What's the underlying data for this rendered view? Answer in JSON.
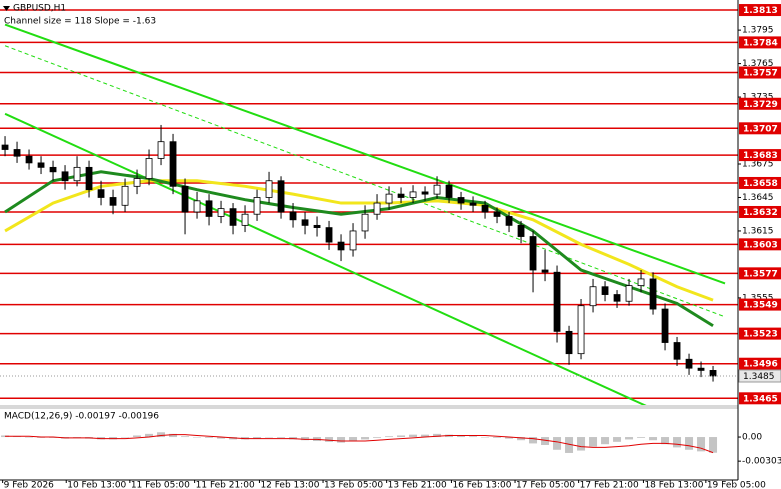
{
  "chart_data": [
    {
      "type": "candlestick",
      "title": "GBPUSD,H1",
      "subtitle": "Channel size = 118 Slope = -1.63",
      "up_color": "#ffffff",
      "down_color": "#000000",
      "open": [
        1.3692,
        1.3688,
        1.3682,
        1.3676,
        1.3672,
        1.3668,
        1.366,
        1.3672,
        1.3652,
        1.3645,
        1.3638,
        1.3655,
        1.3662,
        1.368,
        1.3695,
        1.3655,
        1.3632,
        1.3642,
        1.3628,
        1.3635,
        1.362,
        1.363,
        1.3645,
        1.366,
        1.3632,
        1.3625,
        1.362,
        1.3618,
        1.3605,
        1.3598,
        1.3615,
        1.363,
        1.364,
        1.3648,
        1.3645,
        1.365,
        1.3648,
        1.3656,
        1.3645,
        1.364,
        1.3638,
        1.3632,
        1.3628,
        1.362,
        1.361,
        1.358,
        1.3578,
        1.3525,
        1.3505,
        1.3548,
        1.3565,
        1.3558,
        1.3552,
        1.3566,
        1.3572,
        1.3545,
        1.3515,
        1.35,
        1.3492,
        1.349
      ],
      "high": [
        1.37,
        1.3695,
        1.3688,
        1.3682,
        1.3678,
        1.3674,
        1.3682,
        1.3678,
        1.366,
        1.3652,
        1.3662,
        1.367,
        1.3688,
        1.371,
        1.3702,
        1.3662,
        1.365,
        1.3648,
        1.3642,
        1.364,
        1.3638,
        1.3652,
        1.3668,
        1.3664,
        1.364,
        1.3632,
        1.3628,
        1.3624,
        1.3612,
        1.3622,
        1.3638,
        1.3648,
        1.3655,
        1.3654,
        1.3656,
        1.3655,
        1.3664,
        1.366,
        1.365,
        1.3646,
        1.3642,
        1.3636,
        1.3632,
        1.3624,
        1.3615,
        1.3598,
        1.3584,
        1.353,
        1.3554,
        1.3572,
        1.357,
        1.3562,
        1.3572,
        1.358,
        1.3578,
        1.355,
        1.352,
        1.3505,
        1.3498,
        1.3494
      ],
      "low": [
        1.3682,
        1.3676,
        1.367,
        1.3666,
        1.366,
        1.3652,
        1.3655,
        1.3645,
        1.3638,
        1.363,
        1.3632,
        1.3648,
        1.3656,
        1.3674,
        1.3648,
        1.3612,
        1.3626,
        1.362,
        1.3622,
        1.3612,
        1.3614,
        1.3624,
        1.364,
        1.3626,
        1.3618,
        1.3612,
        1.361,
        1.3598,
        1.3588,
        1.3592,
        1.3608,
        1.3625,
        1.3634,
        1.364,
        1.364,
        1.3642,
        1.3644,
        1.364,
        1.3634,
        1.3632,
        1.3626,
        1.3622,
        1.3614,
        1.3604,
        1.356,
        1.357,
        1.3515,
        1.3495,
        1.35,
        1.3542,
        1.3552,
        1.3546,
        1.3548,
        1.356,
        1.354,
        1.3508,
        1.3494,
        1.3486,
        1.3484,
        1.348
      ],
      "close": [
        1.3688,
        1.3682,
        1.3676,
        1.3672,
        1.3668,
        1.366,
        1.3672,
        1.3652,
        1.3645,
        1.3638,
        1.3655,
        1.3662,
        1.368,
        1.3695,
        1.3655,
        1.3632,
        1.3642,
        1.3628,
        1.3635,
        1.362,
        1.363,
        1.3645,
        1.366,
        1.3632,
        1.3625,
        1.362,
        1.3618,
        1.3605,
        1.3598,
        1.3615,
        1.363,
        1.364,
        1.3648,
        1.3645,
        1.365,
        1.3648,
        1.3656,
        1.3645,
        1.364,
        1.3638,
        1.3632,
        1.3628,
        1.362,
        1.361,
        1.358,
        1.3578,
        1.3525,
        1.3505,
        1.3548,
        1.3565,
        1.3558,
        1.3552,
        1.3566,
        1.3572,
        1.3545,
        1.3515,
        1.35,
        1.3492,
        1.349,
        1.3485
      ],
      "lines": [
        {
          "color": "#f2e61c",
          "x": [
            0,
            4,
            8,
            12,
            16,
            20,
            24,
            28,
            32,
            36,
            40,
            44,
            48,
            52,
            56,
            59
          ],
          "values": [
            1.3615,
            1.364,
            1.3655,
            1.366,
            1.366,
            1.3655,
            1.3648,
            1.364,
            1.364,
            1.3642,
            1.3638,
            1.3625,
            1.3603,
            1.3585,
            1.3565,
            1.3553
          ]
        },
        {
          "color": "#1e8a1e",
          "x": [
            0,
            4,
            8,
            12,
            16,
            20,
            24,
            28,
            32,
            36,
            40,
            44,
            48,
            52,
            56,
            59
          ],
          "values": [
            1.3632,
            1.366,
            1.3668,
            1.3662,
            1.3652,
            1.3643,
            1.3636,
            1.363,
            1.3635,
            1.3645,
            1.364,
            1.3615,
            1.358,
            1.3565,
            1.355,
            1.353
          ]
        }
      ],
      "channel": [
        {
          "color": "#22dd11",
          "x": [
            0,
            60
          ],
          "values": [
            1.38,
            1.3568
          ],
          "dashed": false
        },
        {
          "color": "#22dd11",
          "x": [
            0,
            60
          ],
          "values": [
            1.372,
            1.3426
          ],
          "dashed": false
        },
        {
          "color": "#22dd11",
          "x": [
            0,
            60
          ],
          "values": [
            1.3781,
            1.3538
          ],
          "dashed": true
        }
      ],
      "levels": [
        1.3813,
        1.3784,
        1.3757,
        1.3729,
        1.3707,
        1.3683,
        1.3658,
        1.3632,
        1.3603,
        1.3577,
        1.3549,
        1.3523,
        1.3496,
        1.3465
      ],
      "level_color": "#e00000",
      "last_price": 1.3485,
      "xlim": [
        -0.42,
        61.08
      ],
      "xticks": [
        {
          "value": -0.2,
          "label": "9 Feb 2026"
        },
        {
          "value": 5.1,
          "label": "10 Feb 13:00"
        },
        {
          "value": 10.4,
          "label": "11 Feb 05:00"
        },
        {
          "value": 15.8,
          "label": "11 Feb 21:00"
        },
        {
          "value": 21.2,
          "label": "12 Feb 13:00"
        },
        {
          "value": 26.5,
          "label": "13 Feb 05:00"
        },
        {
          "value": 31.8,
          "label": "13 Feb 21:00"
        },
        {
          "value": 37.2,
          "label": "16 Feb 13:00"
        },
        {
          "value": 42.5,
          "label": "17 Feb 05:00"
        },
        {
          "value": 47.8,
          "label": "17 Feb 21:00"
        },
        {
          "value": 53.2,
          "label": "18 Feb 13:00"
        },
        {
          "value": 58.4,
          "label": "19 Feb 05:00"
        }
      ],
      "ylim": [
        1.3459,
        1.3822
      ],
      "yticks": [
        1.3795,
        1.3765,
        1.3735,
        1.3675,
        1.3645,
        1.3615,
        1.3555
      ]
    },
    {
      "type": "macd",
      "title": "MACD(12,26,9) -0.00197 -0.00196",
      "color": "#c4c4c4",
      "values": [
        0.0002,
        0.0001,
        0.0,
        -0.0001,
        -0.0001,
        -0.0002,
        -0.0001,
        -0.0002,
        -0.0003,
        -0.0003,
        0.0,
        0.0002,
        0.0004,
        0.0006,
        0.0004,
        0.0001,
        0.0,
        -0.0001,
        -0.0002,
        -0.0003,
        -0.0003,
        -0.0002,
        0.0,
        -0.0001,
        -0.0003,
        -0.0004,
        -0.0005,
        -0.0006,
        -0.0007,
        -0.0005,
        -0.0003,
        -0.0001,
        0.0001,
        0.0002,
        0.0003,
        0.0003,
        0.0004,
        0.0003,
        0.0002,
        0.0001,
        0.0,
        -0.0001,
        -0.0002,
        -0.0004,
        -0.0008,
        -0.001,
        -0.0016,
        -0.002,
        -0.0017,
        -0.0012,
        -0.0009,
        -0.0006,
        -0.0003,
        -0.0001,
        -0.0004,
        -0.0009,
        -0.0013,
        -0.0016,
        -0.0018,
        -0.00197
      ],
      "signal": {
        "color": "#e00000",
        "values": [
          0.0001,
          0.0001,
          0.0001,
          0.0,
          0.0,
          -0.0001,
          -0.0001,
          -0.0001,
          -0.0002,
          -0.0002,
          -0.0002,
          -0.0001,
          0.0,
          0.0002,
          0.0003,
          0.0003,
          0.0002,
          0.0001,
          0.0,
          -0.0001,
          -0.0002,
          -0.0002,
          -0.0002,
          -0.0002,
          -0.0002,
          -0.0003,
          -0.0003,
          -0.0004,
          -0.0005,
          -0.0005,
          -0.0005,
          -0.0004,
          -0.0003,
          -0.0002,
          -0.0001,
          0.0,
          0.0001,
          0.0002,
          0.0002,
          0.0002,
          0.0002,
          0.0001,
          0.0,
          -0.0001,
          -0.0002,
          -0.0004,
          -0.0006,
          -0.0009,
          -0.0012,
          -0.0013,
          -0.0013,
          -0.0012,
          -0.0011,
          -0.0009,
          -0.0008,
          -0.0008,
          -0.0009,
          -0.0011,
          -0.0014,
          -0.00196
        ]
      },
      "ylim": [
        -0.0054,
        0.0034
      ],
      "yticks": [
        {
          "value": 0,
          "label": "0.00"
        },
        {
          "value": -0.00303,
          "label": "-0.00303"
        }
      ]
    }
  ]
}
